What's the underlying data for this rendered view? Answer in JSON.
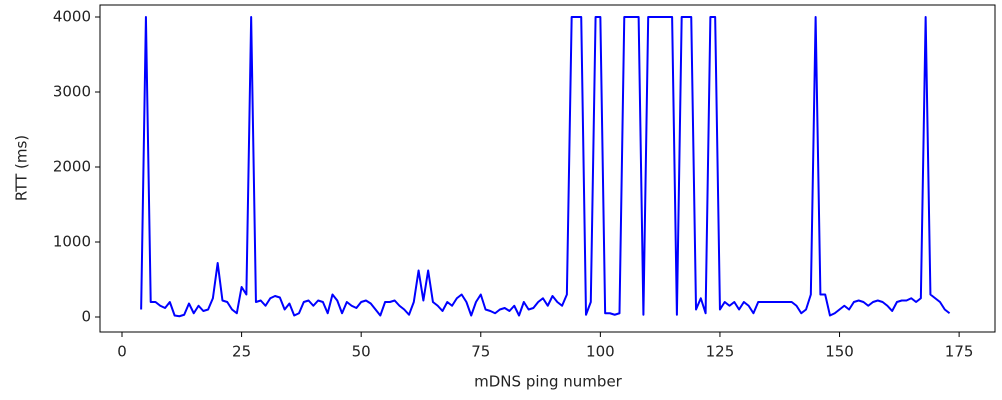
{
  "chart_data": {
    "type": "line",
    "xlabel": "mDNS ping number",
    "ylabel": "RTT (ms)",
    "x": [
      4,
      5,
      6,
      7,
      8,
      9,
      10,
      11,
      12,
      13,
      14,
      15,
      16,
      17,
      18,
      19,
      20,
      21,
      22,
      23,
      24,
      25,
      26,
      27,
      28,
      29,
      30,
      31,
      32,
      33,
      34,
      35,
      36,
      37,
      38,
      39,
      40,
      41,
      42,
      43,
      44,
      45,
      46,
      47,
      48,
      49,
      50,
      51,
      52,
      53,
      54,
      55,
      56,
      57,
      58,
      59,
      60,
      61,
      62,
      63,
      64,
      65,
      66,
      67,
      68,
      69,
      70,
      71,
      72,
      73,
      74,
      75,
      76,
      77,
      78,
      79,
      80,
      81,
      82,
      83,
      84,
      85,
      86,
      87,
      88,
      89,
      90,
      91,
      92,
      93,
      94,
      95,
      96,
      97,
      98,
      99,
      100,
      101,
      102,
      103,
      104,
      105,
      106,
      107,
      108,
      109,
      110,
      111,
      112,
      113,
      114,
      115,
      116,
      117,
      118,
      119,
      120,
      121,
      122,
      123,
      124,
      125,
      126,
      127,
      128,
      129,
      130,
      131,
      132,
      133,
      134,
      135,
      136,
      137,
      138,
      139,
      140,
      141,
      142,
      143,
      144,
      145,
      146,
      147,
      148,
      149,
      150,
      151,
      152,
      153,
      154,
      155,
      156,
      157,
      158,
      159,
      160,
      161,
      162,
      163,
      164,
      165,
      166,
      167,
      168,
      169,
      170,
      171,
      172,
      173
    ],
    "series": [
      {
        "color": "#0000ff",
        "values": [
          100,
          4000,
          200,
          200,
          150,
          120,
          200,
          20,
          10,
          30,
          180,
          50,
          150,
          80,
          100,
          250,
          720,
          220,
          200,
          100,
          50,
          400,
          300,
          4000,
          200,
          220,
          150,
          250,
          280,
          260,
          100,
          180,
          20,
          50,
          200,
          220,
          150,
          220,
          200,
          50,
          300,
          220,
          50,
          200,
          150,
          120,
          200,
          220,
          180,
          100,
          20,
          200,
          200,
          220,
          150,
          100,
          30,
          200,
          620,
          220,
          620,
          200,
          150,
          80,
          200,
          150,
          250,
          300,
          200,
          20,
          200,
          300,
          100,
          80,
          50,
          100,
          120,
          80,
          150,
          20,
          200,
          100,
          120,
          200,
          250,
          150,
          280,
          200,
          150,
          300,
          4000,
          4000,
          4000,
          30,
          200,
          4000,
          4000,
          50,
          50,
          30,
          50,
          4000,
          4000,
          4000,
          4000,
          30,
          4000,
          4000,
          4000,
          4000,
          4000,
          4000,
          30,
          4000,
          4000,
          4000,
          100,
          250,
          50,
          4000,
          4000,
          100,
          200,
          150,
          200,
          100,
          200,
          150,
          50,
          200,
          200,
          200,
          200,
          200,
          200,
          200,
          200,
          150,
          50,
          100,
          300,
          4000,
          300,
          300,
          20,
          50,
          100,
          150,
          100,
          200,
          220,
          200,
          150,
          200,
          220,
          200,
          150,
          80,
          200,
          220,
          220,
          250,
          200,
          250,
          4000,
          300,
          250,
          200,
          100,
          50
        ]
      }
    ],
    "xlim": [
      -4.6,
      182.5
    ],
    "ylim": [
      -200,
      4160
    ],
    "xticks": [
      0,
      25,
      50,
      75,
      100,
      125,
      150,
      175
    ],
    "yticks": [
      0,
      1000,
      2000,
      3000,
      4000
    ]
  }
}
